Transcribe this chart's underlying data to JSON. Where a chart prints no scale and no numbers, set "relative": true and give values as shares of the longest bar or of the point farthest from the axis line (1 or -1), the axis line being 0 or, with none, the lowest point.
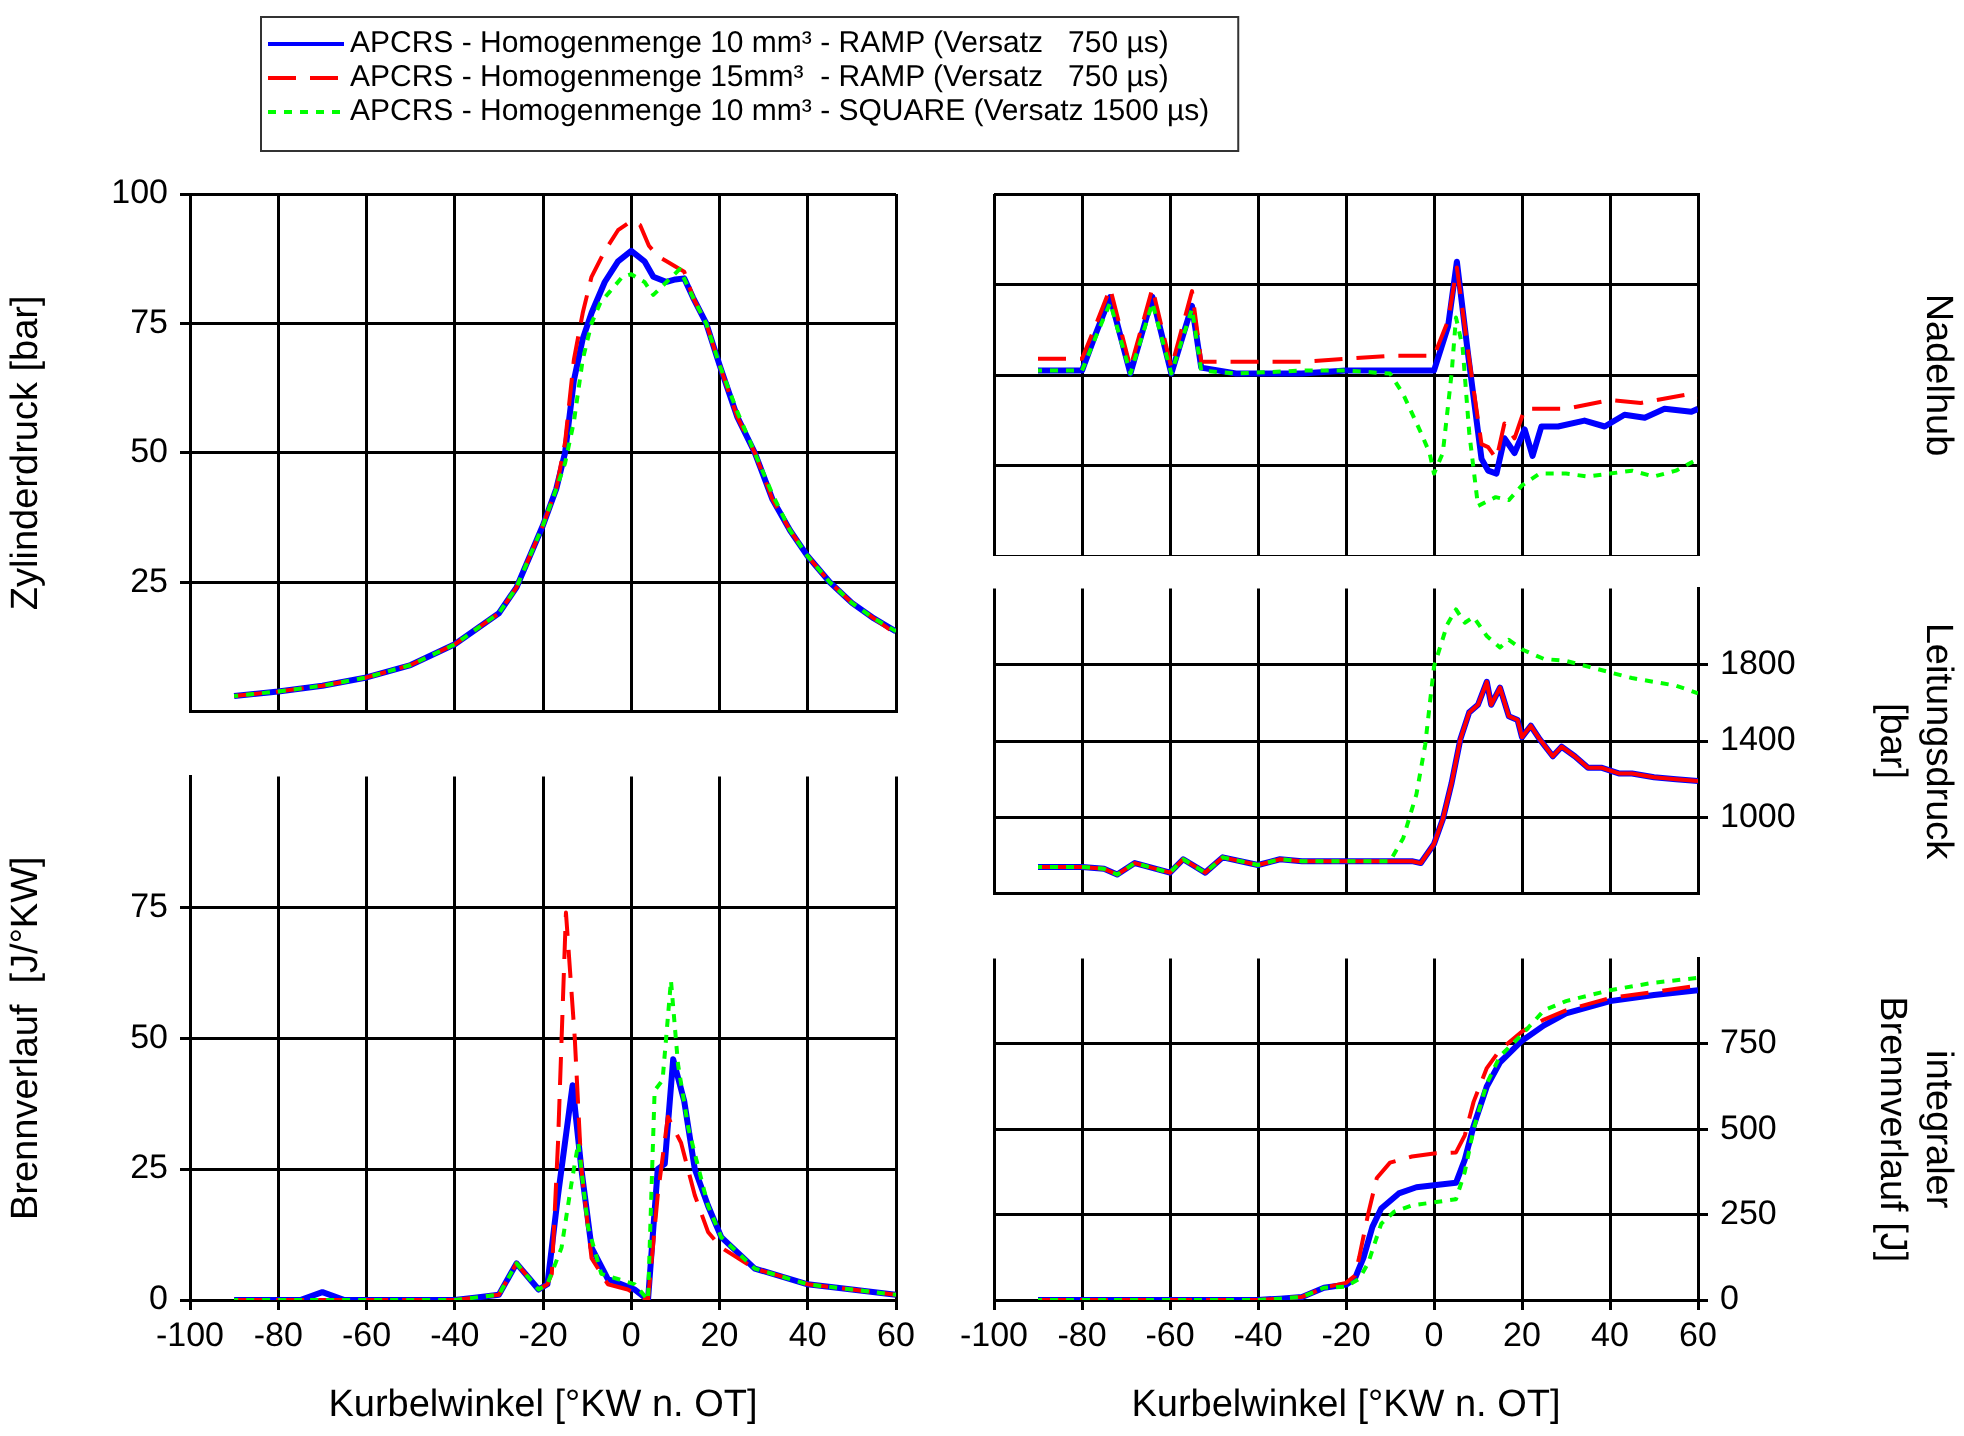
{
  "chart_data": [
    {
      "type": "line",
      "ylabel": "Zylinderdruck [bar]",
      "xlim": [
        -100,
        60
      ],
      "xticks": [
        -100,
        -80,
        -60,
        -40,
        -20,
        0,
        20,
        40,
        60
      ],
      "ylim": [
        0,
        100
      ],
      "yticks": [
        25,
        50,
        75,
        100
      ],
      "grid": true,
      "tick_labels": "y",
      "legend": "top",
      "series": [
        {
          "name": "APCRS - Homogenmenge 10 mm³ - RAMP (Versatz   750 µs)",
          "color": "#0000ff",
          "line_style": "solid",
          "x": [
            -90,
            -80,
            -70,
            -60,
            -50,
            -40,
            -30,
            -26,
            -20,
            -17,
            -15,
            -13,
            -11,
            -9,
            -6,
            -3,
            0,
            3,
            5,
            8,
            10,
            12,
            14,
            17,
            20,
            24,
            28,
            32,
            36,
            40,
            45,
            50,
            55,
            60
          ],
          "values": [
            3,
            3.9,
            5,
            6.6,
            9,
            13,
            19,
            24,
            36,
            43,
            50,
            64,
            72,
            77,
            83,
            87,
            89,
            87,
            84,
            83,
            83.5,
            83.7,
            80,
            75,
            67,
            57,
            50,
            41,
            35,
            30,
            25,
            21,
            18,
            15.5
          ]
        },
        {
          "name": "APCRS - Homogenmenge 15mm³  - RAMP (Versatz   750 µs)",
          "color": "#ff0000",
          "line_style": "dashed",
          "x": [
            -90,
            -80,
            -70,
            -60,
            -50,
            -40,
            -30,
            -26,
            -20,
            -17,
            -15,
            -13,
            -11,
            -9,
            -6,
            -3,
            0,
            2,
            4,
            6,
            8,
            10,
            12,
            14,
            17,
            20,
            24,
            28,
            32,
            36,
            40,
            45,
            50,
            55,
            60
          ],
          "values": [
            3,
            3.9,
            5,
            6.6,
            9,
            13,
            19,
            24,
            36,
            43,
            52,
            68,
            77,
            84,
            89,
            93,
            94.8,
            94,
            90,
            88,
            87,
            86,
            85,
            80,
            75,
            67,
            57,
            50,
            41,
            35,
            30,
            25,
            21,
            18,
            15
          ]
        },
        {
          "name": "APCRS - Homogenmenge 10 mm³ - SQUARE (Versatz 1500 µs)",
          "color": "#00ff00",
          "line_style": "dotted",
          "x": [
            -90,
            -80,
            -70,
            -60,
            -50,
            -40,
            -30,
            -26,
            -20,
            -17,
            -15,
            -13,
            -11,
            -9,
            -7,
            -5,
            -2,
            0,
            3,
            5,
            8,
            11,
            14,
            17,
            20,
            24,
            28,
            32,
            36,
            40,
            45,
            50,
            55,
            60
          ],
          "values": [
            3,
            3.9,
            5,
            6.6,
            9,
            13,
            19,
            24,
            36,
            43,
            48,
            56,
            68,
            75,
            79,
            81,
            84,
            84.5,
            83,
            80.5,
            83,
            85.5,
            80,
            75,
            67,
            58,
            50,
            42,
            35,
            30,
            25,
            21,
            18,
            15.5
          ]
        }
      ]
    },
    {
      "type": "line",
      "xlabel": "Kurbelwinkel [°KW n. OT]",
      "ylabel": "Brennverlauf  [J/°KW]",
      "xlim": [
        -100,
        60
      ],
      "xticks": [
        -100,
        -80,
        -60,
        -40,
        -20,
        0,
        20,
        40,
        60
      ],
      "ylim": [
        0,
        100
      ],
      "yticks": [
        0,
        25,
        50,
        75
      ],
      "grid": true,
      "series": [
        {
          "color": "#0000ff",
          "line_style": "solid",
          "x": [
            -90,
            -75,
            -70,
            -65,
            -40,
            -35,
            -30,
            -26,
            -23,
            -21,
            -19,
            -16.6,
            -13.3,
            -11.3,
            -9,
            -5.3,
            0.8,
            3.8,
            6,
            7.6,
            9.5,
            12,
            14.4,
            17.4,
            20.4,
            28,
            40,
            50,
            60
          ],
          "values": [
            0,
            0,
            1.5,
            0,
            0,
            0.5,
            1,
            7,
            4,
            2,
            3,
            20,
            41,
            25,
            10,
            4,
            2,
            0,
            25,
            26,
            46,
            38,
            25,
            18,
            12,
            6,
            3,
            2,
            1
          ]
        },
        {
          "color": "#ff0000",
          "line_style": "dashed",
          "x": [
            -90,
            -70,
            -40,
            -35,
            -30,
            -26,
            -23,
            -21,
            -19,
            -18,
            -16.6,
            -14.8,
            -12.8,
            -11.3,
            -9,
            -5.3,
            -0.8,
            3.8,
            6,
            8.3,
            11.3,
            14.4,
            17.4,
            20.4,
            28,
            40,
            50,
            60
          ],
          "values": [
            0,
            0,
            0,
            0.5,
            1,
            7,
            4,
            2,
            3,
            5,
            30,
            74,
            50,
            25,
            8,
            3,
            2,
            0,
            20,
            35,
            30,
            20,
            13,
            10,
            6,
            3,
            2,
            1
          ]
        },
        {
          "color": "#00ff00",
          "line_style": "dotted",
          "x": [
            -90,
            -70,
            -40,
            -35,
            -30,
            -26,
            -23,
            -21,
            -19,
            -15.8,
            -13.6,
            -12,
            -9.8,
            -6.8,
            0.8,
            3.8,
            5.3,
            7.1,
            9,
            10.6,
            12.9,
            17.4,
            20.4,
            28,
            40,
            50,
            60
          ],
          "values": [
            0,
            0,
            0,
            0.5,
            1,
            7,
            4,
            2,
            3,
            10,
            22,
            30,
            14,
            5,
            3,
            0,
            40,
            42,
            61,
            45,
            33,
            18,
            12,
            6,
            3,
            2,
            1
          ]
        }
      ]
    },
    {
      "type": "line",
      "ylabel": "Nadelhub",
      "xlim": [
        -100,
        60
      ],
      "xticks": [
        -100,
        -80,
        -60,
        -40,
        -20,
        0,
        20,
        40,
        60
      ],
      "relative": true,
      "grid": true,
      "tick_labels": false,
      "series": [
        {
          "color": "#0000ff",
          "line_style": "solid",
          "x": [
            -90,
            -80,
            -77,
            -73.6,
            -69,
            -64,
            -59.7,
            -55,
            -52.9,
            -45,
            -30,
            -20,
            -10,
            0,
            3.2,
            5.2,
            7.7,
            10.8,
            12.3,
            14.2,
            16,
            18.3,
            20.6,
            22.4,
            24.4,
            28.2,
            34.2,
            38.8,
            43.3,
            47.9,
            52.4,
            58.5,
            60
          ],
          "values": [
            0.63,
            0.63,
            0.75,
            0.88,
            0.62,
            0.88,
            0.62,
            0.85,
            0.64,
            0.62,
            0.62,
            0.63,
            0.63,
            0.63,
            0.78,
            1,
            0.69,
            0.33,
            0.29,
            0.28,
            0.4,
            0.35,
            0.43,
            0.34,
            0.44,
            0.44,
            0.46,
            0.44,
            0.48,
            0.47,
            0.5,
            0.49,
            0.5
          ]
        },
        {
          "color": "#ff0000",
          "line_style": "dashed",
          "x": [
            -90,
            -80,
            -77,
            -73.6,
            -69,
            -64,
            -59.7,
            -55,
            -52.9,
            -45,
            -30,
            -20,
            -10,
            0,
            3.2,
            5.2,
            7.7,
            10.8,
            12.3,
            14.2,
            16,
            18.3,
            20.6,
            24.4,
            30,
            40,
            47,
            58,
            60
          ],
          "values": [
            0.67,
            0.67,
            0.78,
            0.91,
            0.64,
            0.91,
            0.64,
            0.9,
            0.66,
            0.66,
            0.66,
            0.67,
            0.68,
            0.68,
            0.8,
            0.98,
            0.7,
            0.38,
            0.37,
            0.33,
            0.45,
            0.4,
            0.5,
            0.5,
            0.5,
            0.53,
            0.52,
            0.55,
            0.54
          ]
        },
        {
          "color": "#00ff00",
          "line_style": "dotted",
          "x": [
            -90,
            -80,
            -77,
            -73.6,
            -69,
            -64,
            -59.7,
            -55,
            -52.9,
            -45,
            -30,
            -20,
            -10,
            -7,
            -3,
            -1,
            0,
            2,
            4,
            5,
            6.5,
            8,
            10,
            14,
            17,
            20,
            24,
            30,
            35,
            40,
            45,
            50,
            55,
            60
          ],
          "values": [
            0.63,
            0.63,
            0.74,
            0.86,
            0.62,
            0.86,
            0.62,
            0.84,
            0.63,
            0.62,
            0.63,
            0.63,
            0.62,
            0.55,
            0.42,
            0.35,
            0.28,
            0.35,
            0.62,
            0.81,
            0.71,
            0.42,
            0.17,
            0.2,
            0.19,
            0.24,
            0.28,
            0.28,
            0.27,
            0.28,
            0.29,
            0.27,
            0.29,
            0.33
          ]
        }
      ]
    },
    {
      "type": "line",
      "ylabel": "Leitungsdruck [bar]",
      "xlim": [
        -100,
        60
      ],
      "xticks": [
        -100,
        -80,
        -60,
        -40,
        -20,
        0,
        20,
        40,
        60
      ],
      "ylim": [
        600,
        2200
      ],
      "yticks": [
        1000,
        1400,
        1800
      ],
      "grid": true,
      "tick_labels": "y",
      "series": [
        {
          "color": "#0000ff",
          "line_style": "solid",
          "x": [
            -90,
            -80,
            -75,
            -72,
            -68,
            -60,
            -57,
            -52,
            -48,
            -40,
            -35,
            -30,
            -25,
            -20,
            -15,
            -10,
            -5,
            -3,
            0,
            2,
            4,
            6,
            8,
            10,
            12,
            13,
            15,
            17,
            19,
            20,
            22,
            24,
            27,
            29,
            32,
            35,
            38,
            42,
            45,
            50,
            55,
            60
          ],
          "values": [
            740,
            740,
            730,
            700,
            760,
            710,
            780,
            710,
            790,
            750,
            780,
            770,
            770,
            770,
            770,
            770,
            770,
            760,
            860,
            990,
            1180,
            1410,
            1550,
            1590,
            1710,
            1590,
            1680,
            1530,
            1510,
            1420,
            1480,
            1410,
            1320,
            1370,
            1320,
            1260,
            1260,
            1230,
            1230,
            1210,
            1200,
            1190
          ]
        },
        {
          "color": "#ff0000",
          "line_style": "solid",
          "x": [
            -90,
            -80,
            -75,
            -72,
            -68,
            -60,
            -57,
            -52,
            -48,
            -40,
            -35,
            -30,
            -25,
            -20,
            -15,
            -10,
            -5,
            -3,
            0,
            2,
            4,
            6,
            8,
            10,
            12,
            13,
            15,
            17,
            19,
            20,
            22,
            24,
            27,
            29,
            32,
            35,
            38,
            42,
            45,
            50,
            55,
            60
          ],
          "values": [
            740,
            740,
            730,
            700,
            760,
            710,
            780,
            710,
            790,
            750,
            780,
            770,
            770,
            770,
            770,
            770,
            770,
            760,
            860,
            990,
            1180,
            1410,
            1550,
            1590,
            1710,
            1590,
            1680,
            1530,
            1510,
            1420,
            1480,
            1410,
            1320,
            1370,
            1320,
            1260,
            1260,
            1230,
            1230,
            1210,
            1200,
            1190
          ]
        },
        {
          "color": "#00ff00",
          "line_style": "dotted",
          "x": [
            -90,
            -80,
            -75,
            -72,
            -68,
            -60,
            -57,
            -52,
            -48,
            -40,
            -35,
            -30,
            -25,
            -20,
            -15,
            -10,
            -7,
            -4,
            -2,
            0,
            3,
            5,
            7,
            9,
            12,
            15,
            17,
            20,
            25,
            30,
            35,
            40,
            45,
            50,
            55,
            60
          ],
          "values": [
            740,
            740,
            730,
            700,
            760,
            710,
            780,
            710,
            790,
            750,
            780,
            770,
            770,
            770,
            770,
            770,
            890,
            1120,
            1380,
            1790,
            2010,
            2090,
            2020,
            2050,
            1950,
            1890,
            1930,
            1880,
            1830,
            1820,
            1790,
            1760,
            1730,
            1710,
            1690,
            1650
          ]
        }
      ]
    },
    {
      "type": "line",
      "xlabel": "Kurbelwinkel [°KW n. OT]",
      "ylabel": "integraler Brennverlauf [J]",
      "xlim": [
        -100,
        60
      ],
      "xticks": [
        -100,
        -80,
        -60,
        -40,
        -20,
        0,
        20,
        40,
        60
      ],
      "ylim": [
        0,
        1000
      ],
      "yticks": [
        0,
        250,
        500,
        750
      ],
      "grid": true,
      "series": [
        {
          "color": "#0000ff",
          "line_style": "solid",
          "x": [
            -90,
            -40,
            -35,
            -30,
            -25,
            -20,
            -18,
            -16,
            -14,
            -12,
            -8,
            -4,
            0,
            5,
            7,
            9,
            12,
            15,
            20,
            25,
            30,
            40,
            50,
            60
          ],
          "values": [
            0,
            0,
            4,
            9,
            36,
            45,
            62,
            125,
            214,
            268,
            312,
            330,
            336,
            343,
            411,
            509,
            625,
            696,
            759,
            804,
            839,
            875,
            893,
            907
          ]
        },
        {
          "color": "#ff0000",
          "line_style": "dashed",
          "x": [
            -90,
            -40,
            -35,
            -30,
            -25,
            -20,
            -18,
            -17,
            -15,
            -13,
            -10,
            -5,
            0,
            5,
            7,
            9,
            12,
            15,
            20,
            25,
            30,
            40,
            50,
            60
          ],
          "values": [
            0,
            0,
            4,
            9,
            36,
            50,
            71,
            125,
            250,
            357,
            402,
            420,
            429,
            432,
            482,
            580,
            679,
            732,
            786,
            821,
            848,
            884,
            902,
            920
          ]
        },
        {
          "color": "#00ff00",
          "line_style": "dotted",
          "x": [
            -90,
            -40,
            -35,
            -30,
            -25,
            -20,
            -17,
            -15,
            -12,
            -9,
            -5,
            0,
            5,
            7,
            9,
            12,
            15,
            20,
            25,
            30,
            40,
            50,
            60
          ],
          "values": [
            0,
            0,
            4,
            9,
            36,
            39,
            62,
            107,
            223,
            259,
            277,
            286,
            295,
            375,
            500,
            634,
            714,
            777,
            848,
            875,
            907,
            929,
            943
          ]
        }
      ]
    }
  ]
}
